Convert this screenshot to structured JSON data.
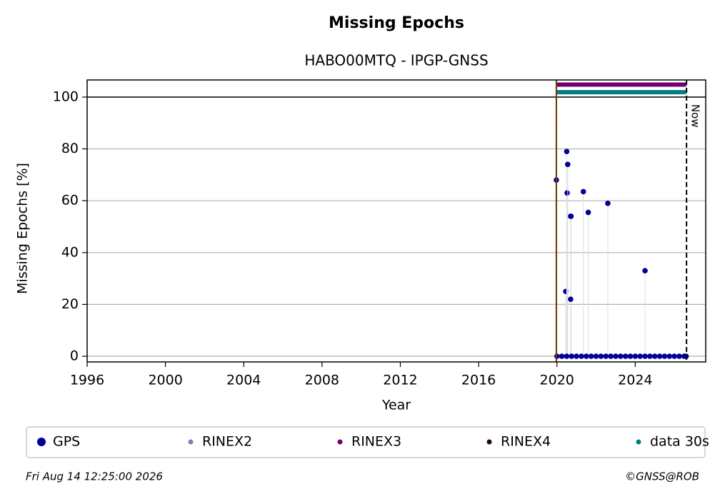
{
  "chart_data": {
    "type": "scatter",
    "title": "Missing Epochs",
    "subtitle": "HABO00MTQ - IPGP-GNSS",
    "x_label": "Year",
    "y_label": "Missing Epochs [%]",
    "xlim": [
      1996,
      2027.6
    ],
    "ylim": [
      -2.2,
      106.6
    ],
    "xticks": [
      1996,
      2000,
      2004,
      2008,
      2012,
      2016,
      2020,
      2024
    ],
    "yticks": [
      0,
      20,
      40,
      60,
      80,
      100
    ],
    "grid": true,
    "reference_line": 100,
    "start_line": {
      "x": 2019.97,
      "color": "#008000"
    },
    "now_line": {
      "x": 2026.62,
      "label": "Now"
    },
    "series": [
      {
        "name": "GPS",
        "color": "#000099",
        "style": "dots",
        "x": [
          2019.97,
          2020.45,
          2020.5,
          2020.52,
          2020.55,
          2020.7,
          2020.72,
          2020.7,
          2021.35,
          2021.6,
          2022.6,
          2024.5,
          2020.0,
          2020.25,
          2020.5,
          2020.75,
          2021.0,
          2021.25,
          2021.5,
          2021.75,
          2022.0,
          2022.25,
          2022.5,
          2022.75,
          2023.0,
          2023.25,
          2023.5,
          2023.75,
          2024.0,
          2024.25,
          2024.5,
          2024.75,
          2025.0,
          2025.25,
          2025.5,
          2025.75,
          2026.0,
          2026.25,
          2026.5,
          2026.6
        ],
        "values": [
          68,
          25,
          79,
          63,
          74,
          54,
          54,
          22,
          63.5,
          55.5,
          59,
          33,
          0,
          0,
          0,
          0,
          0,
          0,
          0,
          0,
          0,
          0,
          0,
          0,
          0,
          0,
          0,
          0,
          0,
          0,
          0,
          0,
          0,
          0,
          0,
          0,
          0,
          0,
          0,
          0
        ]
      },
      {
        "name": "RINEX2",
        "color": "#8080c0",
        "style": "dots",
        "x": [],
        "values": []
      },
      {
        "name": "RINEX3",
        "color": "#700070",
        "style": "line",
        "x": [
          2019.97,
          2026.6
        ],
        "values": [
          104.8,
          104.8
        ]
      },
      {
        "name": "RINEX4",
        "color": "#200020",
        "style": "dots",
        "x": [],
        "values": []
      },
      {
        "name": "data 30s",
        "color": "#008080",
        "style": "line",
        "x": [
          2019.97,
          2026.6
        ],
        "values": [
          101.9,
          101.9
        ]
      }
    ],
    "footer_left": "Fri Aug 14 12:25:00 2026",
    "footer_right": "©GNSS@ROB"
  }
}
